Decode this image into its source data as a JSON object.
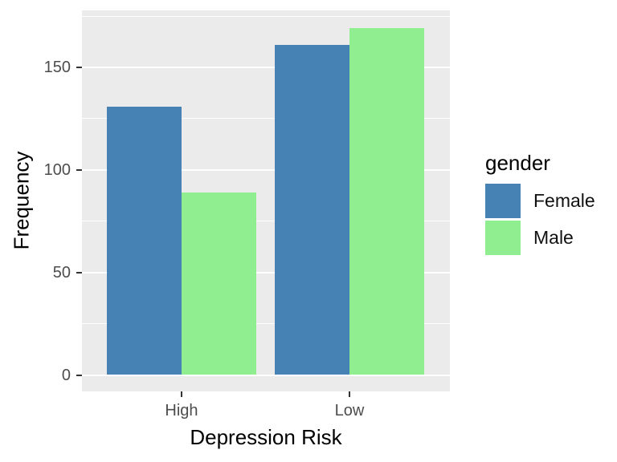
{
  "figure": {
    "background": "#FFFFFF"
  },
  "chart_data": {
    "type": "bar",
    "bar_layout": "dodged",
    "title": "",
    "xlabel": "Depression Risk",
    "ylabel": "Frequency",
    "categories": [
      "High",
      "Low"
    ],
    "series": [
      {
        "name": "Female",
        "color": "#4682B4",
        "values": [
          131,
          161
        ]
      },
      {
        "name": "Male",
        "color": "#90EE90",
        "values": [
          89,
          169
        ]
      }
    ],
    "y_ticks": [
      0,
      50,
      100,
      150
    ],
    "y_minor_gridlines": [
      25,
      75,
      125,
      175
    ],
    "ylim": [
      0,
      177
    ],
    "grid": true,
    "legend": {
      "title": "gender",
      "position": "right",
      "entries": [
        "Female",
        "Male"
      ]
    },
    "colors": {
      "panel_background": "#EBEBEB",
      "gridline": "#FFFFFF",
      "tick_label": "#4D4D4D",
      "tick_mark": "#333333",
      "axis_title": "#000000"
    }
  }
}
